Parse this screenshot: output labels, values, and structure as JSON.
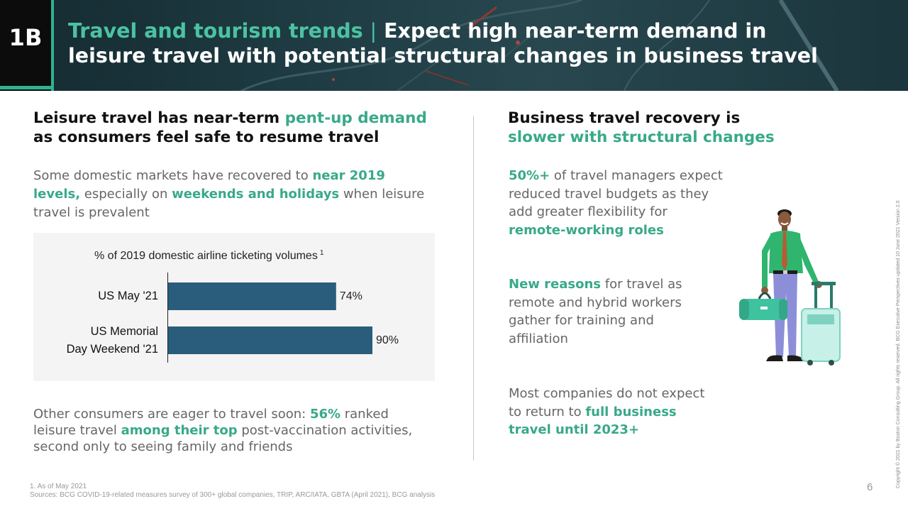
{
  "header": {
    "badge": "1B",
    "title_accent": "Travel and tourism trends",
    "title_separator": "|",
    "title_line1": " Expect high near-term demand in",
    "title_line2": "leisure travel with potential structural changes in business travel"
  },
  "left": {
    "heading_line1_plain": "Leisure travel has near-term ",
    "heading_line1_accent": "pent-up demand",
    "heading_line2": "as consumers feel safe to resume travel",
    "para1": {
      "l1_plain": "Some domestic markets have recovered to ",
      "l1_bold": "near 2019",
      "l2_bold1": "levels,",
      "l2_plain1": " especially on ",
      "l2_bold2": "weekends and holidays",
      "l2_plain2": " when leisure",
      "l3_plain": "travel is prevalent"
    },
    "para2": {
      "l1_plain": "Other consumers are eager to travel soon: ",
      "l1_bold": "56%",
      "l1_plain2": " ranked",
      "l2_plain": "leisure travel ",
      "l2_bold": "among their top",
      "l2_plain2": " post-vaccination activities,",
      "l3_plain": "second only to seeing family and friends"
    }
  },
  "chart_data": {
    "type": "bar",
    "orientation": "horizontal",
    "title": "% of 2019 domestic airline ticketing volumes",
    "title_footnote": "1",
    "categories": [
      "US May '21",
      "US Memorial Day Weekend '21"
    ],
    "category_lines": [
      [
        "US May '21"
      ],
      [
        "US Memorial",
        "Day Weekend '21"
      ]
    ],
    "values": [
      74,
      90
    ],
    "value_labels": [
      "74%",
      "90%"
    ],
    "xlim": [
      0,
      100
    ],
    "bar_color": "#2a5d7c",
    "grid": false
  },
  "right": {
    "heading_line1": "Business travel recovery is",
    "heading_line2": "slower with structural changes",
    "block1": {
      "l1_bold": "50%+",
      "l1_plain": " of travel managers expect",
      "l2_plain": "reduced travel budgets as they",
      "l3_plain": "add greater flexibility for",
      "l4_bold": "remote-working roles"
    },
    "block2": {
      "l1_bold": "New reasons",
      "l1_plain": " for travel as",
      "l2_plain": "remote and hybrid workers",
      "l3_plain": "gather for training and",
      "l4_plain": "affiliation"
    },
    "block3": {
      "l1_plain": "Most companies do not expect",
      "l2_plain": "to return to ",
      "l2_bold": "full business",
      "l3_bold": "travel until 2023+"
    }
  },
  "footer": {
    "note1": "1. As of May 2021",
    "sources": "Sources: BCG COVID-19-related measures survey of 300+ global companies, TRIP, ARC/IATA, GBTA (April 2021), BCG analysis",
    "page_number": "6",
    "copyright": "Copyright © 2021 by Boston Consulting Group. All rights reserved. BCG Executive Perspectives updated 10 June 2021 Version 2.0"
  },
  "colors": {
    "accent_green": "#38a989",
    "header_bg": "#1f3c44",
    "bar": "#2a5d7c"
  },
  "icons": [
    "traveler-illustration",
    "duffel-bag-icon",
    "suitcase-icon"
  ]
}
